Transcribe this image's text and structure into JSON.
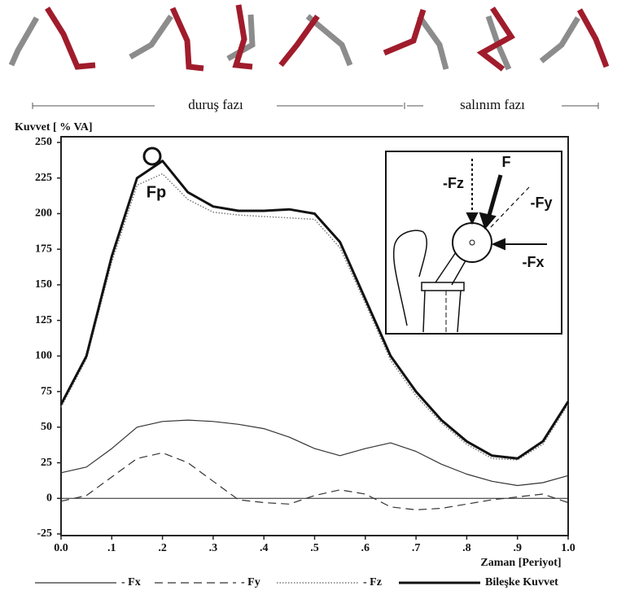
{
  "chart_data": {
    "type": "line",
    "ylabel": "Kuvvet [ % VA]",
    "xlabel": "Zaman [Periyot]",
    "annotations": [
      "duruş fazı",
      "salınım fazı",
      "Fp",
      "F",
      "-Fz",
      "-Fy",
      "-Fx"
    ],
    "x": [
      0,
      0.05,
      0.1,
      0.15,
      0.2,
      0.25,
      0.3,
      0.35,
      0.4,
      0.45,
      0.5,
      0.55,
      0.6,
      0.65,
      0.7,
      0.75,
      0.8,
      0.85,
      0.9,
      0.95,
      1
    ],
    "series": [
      {
        "name": "- Fx",
        "color": "#333333",
        "style": "solid",
        "values": [
          18,
          22,
          35,
          50,
          54,
          55,
          54,
          52,
          49,
          43,
          35,
          30,
          35,
          39,
          33,
          24,
          17,
          12,
          9,
          11,
          16
        ]
      },
      {
        "name": "- Fy",
        "color": "#333333",
        "style": "dashed",
        "values": [
          -2,
          2,
          15,
          28,
          32,
          25,
          12,
          -1,
          -3,
          -4,
          2,
          6,
          3,
          -6,
          -8,
          -7,
          -4,
          -1,
          1,
          3,
          -3
        ]
      },
      {
        "name": "- Fz",
        "color": "#777777",
        "style": "dotted",
        "values": [
          64,
          98,
          166,
          220,
          228,
          210,
          201,
          199,
          198,
          197,
          196,
          176,
          137,
          97,
          72,
          53,
          38,
          28,
          27,
          38,
          66
        ]
      },
      {
        "name": "Bileşke Kuvvet",
        "color": "#111111",
        "style": "thick",
        "values": [
          66,
          100,
          170,
          225,
          237,
          215,
          205,
          202,
          202,
          203,
          200,
          180,
          140,
          100,
          75,
          55,
          40,
          30,
          28,
          40,
          68
        ]
      }
    ],
    "xlim": [
      0,
      1
    ],
    "xticks": [
      {
        "value": 0,
        "label": "0.0"
      },
      {
        "value": 0.1,
        "label": ".1"
      },
      {
        "value": 0.2,
        "label": ".2"
      },
      {
        "value": 0.3,
        "label": ".3"
      },
      {
        "value": 0.4,
        "label": ".4"
      },
      {
        "value": 0.5,
        "label": ".5"
      },
      {
        "value": 0.6,
        "label": ".6"
      },
      {
        "value": 0.7,
        "label": ".7"
      },
      {
        "value": 0.8,
        "label": ".8"
      },
      {
        "value": 0.9,
        "label": ".9"
      },
      {
        "value": 1,
        "label": "1.0"
      }
    ],
    "ylim": [
      -25,
      250
    ],
    "yticks": [
      -25,
      0,
      25,
      50,
      75,
      100,
      125,
      150,
      175,
      200,
      225,
      250
    ],
    "grid": false
  }
}
